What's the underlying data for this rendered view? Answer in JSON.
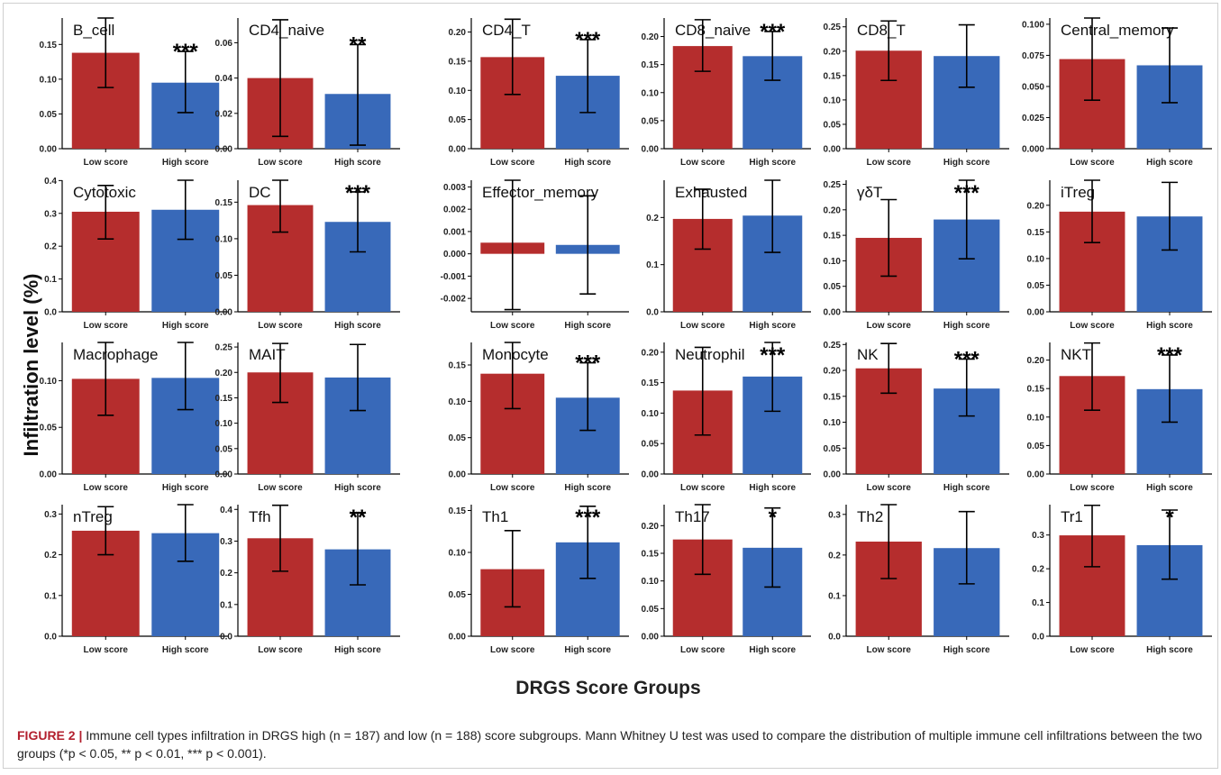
{
  "figure": {
    "ylabel": "Infiltration level (%)",
    "xlabel": "DRGS Score Groups",
    "caption": {
      "label": "FIGURE 2 |",
      "text": " Immune cell types infiltration in DRGS high (n = 187) and low (n = 188) score subgroups. Mann Whitney U test was used to compare the distribution of multiple immune cell infiltrations between the two groups (*p < 0.05, ** p < 0.01, *** p < 0.001)."
    }
  },
  "colors": {
    "low": "#b52d2d",
    "high": "#3869b9"
  },
  "chart_data": [
    {
      "type": "bar",
      "title": "B_cell",
      "categories": [
        "Low score",
        "High score"
      ],
      "values": [
        0.138,
        0.095
      ],
      "error": [
        [
          0.088,
          0.188
        ],
        [
          0.052,
          0.14
        ]
      ],
      "ylim": [
        0,
        0.188
      ],
      "yticks": [
        "0.00",
        "0.05",
        "0.10",
        "0.15"
      ],
      "significance": "***"
    },
    {
      "type": "bar",
      "title": "CD4_naive",
      "categories": [
        "Low score",
        "High score"
      ],
      "values": [
        0.04,
        0.031
      ],
      "error": [
        [
          0.007,
          0.073
        ],
        [
          0.002,
          0.059
        ]
      ],
      "ylim": [
        0,
        0.074
      ],
      "yticks": [
        "0.00",
        "0.02",
        "0.04",
        "0.06"
      ],
      "significance": "**"
    },
    {
      "type": "bar",
      "title": "CD4_T",
      "categories": [
        "Low score",
        "High score"
      ],
      "values": [
        0.157,
        0.125
      ],
      "error": [
        [
          0.093,
          0.222
        ],
        [
          0.062,
          0.187
        ]
      ],
      "ylim": [
        0,
        0.224
      ],
      "yticks": [
        "0.00",
        "0.05",
        "0.10",
        "0.15",
        "0.20"
      ],
      "significance": "***"
    },
    {
      "type": "bar",
      "title": "CD8_naive",
      "categories": [
        "Low score",
        "High score"
      ],
      "values": [
        0.183,
        0.165
      ],
      "error": [
        [
          0.138,
          0.23
        ],
        [
          0.122,
          0.209
        ]
      ],
      "ylim": [
        0,
        0.233
      ],
      "yticks": [
        "0.00",
        "0.05",
        "0.10",
        "0.15",
        "0.20"
      ],
      "significance": "***"
    },
    {
      "type": "bar",
      "title": "CD8_T",
      "categories": [
        "Low score",
        "High score"
      ],
      "values": [
        0.201,
        0.19
      ],
      "error": [
        [
          0.14,
          0.262
        ],
        [
          0.126,
          0.254
        ]
      ],
      "ylim": [
        0,
        0.268
      ],
      "yticks": [
        "0.00",
        "0.05",
        "0.10",
        "0.15",
        "0.20",
        "0.25"
      ],
      "significance": ""
    },
    {
      "type": "bar",
      "title": "Central_memory",
      "categories": [
        "Low score",
        "High score"
      ],
      "values": [
        0.072,
        0.067
      ],
      "error": [
        [
          0.039,
          0.105
        ],
        [
          0.037,
          0.097
        ]
      ],
      "ylim": [
        0,
        0.105
      ],
      "yticks": [
        "0.000",
        "0.025",
        "0.050",
        "0.075",
        "0.100"
      ],
      "significance": ""
    },
    {
      "type": "bar",
      "title": "Cytotoxic",
      "categories": [
        "Low score",
        "High score"
      ],
      "values": [
        0.305,
        0.311
      ],
      "error": [
        [
          0.222,
          0.385
        ],
        [
          0.221,
          0.401
        ]
      ],
      "ylim": [
        0,
        0.401
      ],
      "yticks": [
        "0.0",
        "0.1",
        "0.2",
        "0.3",
        "0.4"
      ],
      "significance": ""
    },
    {
      "type": "bar",
      "title": "DC",
      "categories": [
        "Low score",
        "High score"
      ],
      "values": [
        0.146,
        0.123
      ],
      "error": [
        [
          0.109,
          0.18
        ],
        [
          0.082,
          0.164
        ]
      ],
      "ylim": [
        0,
        0.18
      ],
      "yticks": [
        "0.00",
        "0.05",
        "0.10",
        "0.15"
      ],
      "significance": "***"
    },
    {
      "type": "bar",
      "title": "Effector_memory",
      "categories": [
        "Low score",
        "High score"
      ],
      "values": [
        0.0005,
        0.0004
      ],
      "error": [
        [
          -0.0025,
          0.0033
        ],
        [
          -0.0018,
          0.0026
        ]
      ],
      "ylim": [
        -0.0026,
        0.0033
      ],
      "yticks": [
        "-0.002",
        "-0.001",
        "0.000",
        "0.001",
        "0.002",
        "0.003"
      ],
      "significance": ""
    },
    {
      "type": "bar",
      "title": "Exhausted",
      "categories": [
        "Low score",
        "High score"
      ],
      "values": [
        0.197,
        0.204
      ],
      "error": [
        [
          0.133,
          0.26
        ],
        [
          0.126,
          0.279
        ]
      ],
      "ylim": [
        0,
        0.279
      ],
      "yticks": [
        "0.0",
        "0.1",
        "0.2"
      ],
      "significance": ""
    },
    {
      "type": "bar",
      "title": "γδT",
      "categories": [
        "Low score",
        "High score"
      ],
      "values": [
        0.145,
        0.181
      ],
      "error": [
        [
          0.07,
          0.22
        ],
        [
          0.104,
          0.258
        ]
      ],
      "ylim": [
        0,
        0.258
      ],
      "yticks": [
        "0.00",
        "0.05",
        "0.10",
        "0.15",
        "0.20",
        "0.25"
      ],
      "significance": "***"
    },
    {
      "type": "bar",
      "title": "iTreg",
      "categories": [
        "Low score",
        "High score"
      ],
      "values": [
        0.188,
        0.179
      ],
      "error": [
        [
          0.13,
          0.247
        ],
        [
          0.116,
          0.243
        ]
      ],
      "ylim": [
        0,
        0.247
      ],
      "yticks": [
        "0.00",
        "0.05",
        "0.10",
        "0.15",
        "0.20"
      ],
      "significance": ""
    },
    {
      "type": "bar",
      "title": "Macrophage",
      "categories": [
        "Low score",
        "High score"
      ],
      "values": [
        0.102,
        0.103
      ],
      "error": [
        [
          0.063,
          0.141
        ],
        [
          0.069,
          0.141
        ]
      ],
      "ylim": [
        0,
        0.141
      ],
      "yticks": [
        "0.00",
        "0.05",
        "0.10"
      ],
      "significance": ""
    },
    {
      "type": "bar",
      "title": "MAIT",
      "categories": [
        "Low score",
        "High score"
      ],
      "values": [
        0.2,
        0.19
      ],
      "error": [
        [
          0.141,
          0.257
        ],
        [
          0.125,
          0.255
        ]
      ],
      "ylim": [
        0,
        0.259
      ],
      "yticks": [
        "0.00",
        "0.05",
        "0.10",
        "0.15",
        "0.20",
        "0.25"
      ],
      "significance": ""
    },
    {
      "type": "bar",
      "title": "Monocyte",
      "categories": [
        "Low score",
        "High score"
      ],
      "values": [
        0.138,
        0.105
      ],
      "error": [
        [
          0.09,
          0.181
        ],
        [
          0.06,
          0.153
        ]
      ],
      "ylim": [
        0,
        0.181
      ],
      "yticks": [
        "0.00",
        "0.05",
        "0.10",
        "0.15"
      ],
      "significance": "***"
    },
    {
      "type": "bar",
      "title": "Neutrophil",
      "categories": [
        "Low score",
        "High score"
      ],
      "values": [
        0.137,
        0.16
      ],
      "error": [
        [
          0.064,
          0.208
        ],
        [
          0.103,
          0.216
        ]
      ],
      "ylim": [
        0,
        0.216
      ],
      "yticks": [
        "0.00",
        "0.05",
        "0.10",
        "0.15",
        "0.20"
      ],
      "significance": "***"
    },
    {
      "type": "bar",
      "title": "NK",
      "categories": [
        "Low score",
        "High score"
      ],
      "values": [
        0.204,
        0.165
      ],
      "error": [
        [
          0.156,
          0.252
        ],
        [
          0.112,
          0.222
        ]
      ],
      "ylim": [
        0,
        0.254
      ],
      "yticks": [
        "0.00",
        "0.05",
        "0.10",
        "0.15",
        "0.20",
        "0.25"
      ],
      "significance": "***"
    },
    {
      "type": "bar",
      "title": "NKT",
      "categories": [
        "Low score",
        "High score"
      ],
      "values": [
        0.172,
        0.149
      ],
      "error": [
        [
          0.112,
          0.23
        ],
        [
          0.091,
          0.209
        ]
      ],
      "ylim": [
        0,
        0.231
      ],
      "yticks": [
        "0.00",
        "0.05",
        "0.10",
        "0.15",
        "0.20"
      ],
      "significance": "***"
    },
    {
      "type": "bar",
      "title": "nTreg",
      "categories": [
        "Low score",
        "High score"
      ],
      "values": [
        0.259,
        0.253
      ],
      "error": [
        [
          0.2,
          0.318
        ],
        [
          0.184,
          0.323
        ]
      ],
      "ylim": [
        0,
        0.323
      ],
      "yticks": [
        "0.0",
        "0.1",
        "0.2",
        "0.3"
      ],
      "significance": ""
    },
    {
      "type": "bar",
      "title": "Tfh",
      "categories": [
        "Low score",
        "High score"
      ],
      "values": [
        0.309,
        0.274
      ],
      "error": [
        [
          0.205,
          0.413
        ],
        [
          0.162,
          0.39
        ]
      ],
      "ylim": [
        0,
        0.415
      ],
      "yticks": [
        "0.0",
        "0.1",
        "0.2",
        "0.3",
        "0.4"
      ],
      "significance": "**"
    },
    {
      "type": "bar",
      "title": "Th1",
      "categories": [
        "Low score",
        "High score"
      ],
      "values": [
        0.08,
        0.112
      ],
      "error": [
        [
          0.035,
          0.126
        ],
        [
          0.069,
          0.155
        ]
      ],
      "ylim": [
        0,
        0.157
      ],
      "yticks": [
        "0.00",
        "0.05",
        "0.10",
        "0.15"
      ],
      "significance": "***"
    },
    {
      "type": "bar",
      "title": "Th17",
      "categories": [
        "Low score",
        "High score"
      ],
      "values": [
        0.175,
        0.16
      ],
      "error": [
        [
          0.112,
          0.238
        ],
        [
          0.089,
          0.232
        ]
      ],
      "ylim": [
        0,
        0.238
      ],
      "yticks": [
        "0.00",
        "0.05",
        "0.10",
        "0.15",
        "0.20"
      ],
      "significance": "*"
    },
    {
      "type": "bar",
      "title": "Th2",
      "categories": [
        "Low score",
        "High score"
      ],
      "values": [
        0.233,
        0.217
      ],
      "error": [
        [
          0.142,
          0.324
        ],
        [
          0.129,
          0.307
        ]
      ],
      "ylim": [
        0,
        0.324
      ],
      "yticks": [
        "0.0",
        "0.1",
        "0.2",
        "0.3"
      ],
      "significance": ""
    },
    {
      "type": "bar",
      "title": "Tr1",
      "categories": [
        "Low score",
        "High score"
      ],
      "values": [
        0.299,
        0.27
      ],
      "error": [
        [
          0.206,
          0.388
        ],
        [
          0.169,
          0.374
        ]
      ],
      "ylim": [
        0,
        0.39
      ],
      "yticks": [
        "0.0",
        "0.1",
        "0.2",
        "0.3"
      ],
      "significance": "*"
    }
  ]
}
